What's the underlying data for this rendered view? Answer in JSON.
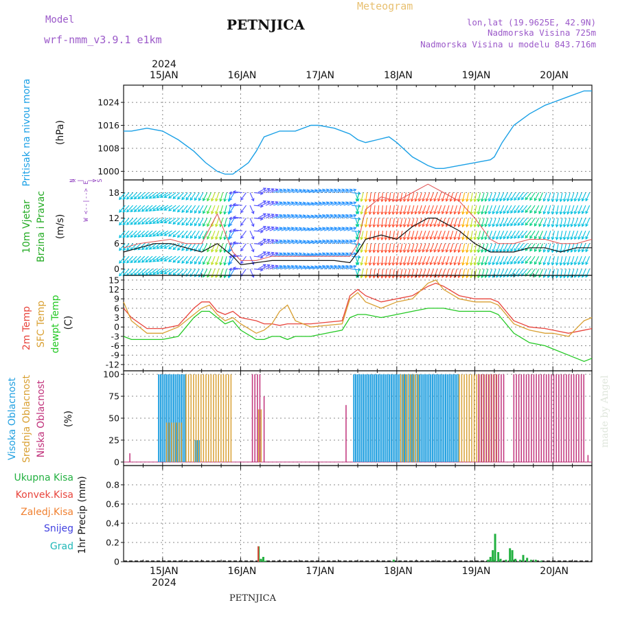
{
  "header": {
    "model_label": "Model",
    "model_name": "wrf-nmm_v3.9.1 e1km",
    "station": "PETNJICA",
    "meteogram": "Meteogram",
    "lonlat": "lon,lat (19.9625E, 42.9N)",
    "altitude": "Nadmorska Visina 725m",
    "altitude_model": "Nadmorska Visina u modelu 843.716m",
    "watermark": "made by Angel",
    "footer_station": "PETNJICA"
  },
  "colors": {
    "pressure": "#1aa0e6",
    "temp2m": "#e8443c",
    "sfc_temp": "#d9a032",
    "dewpt": "#22c822",
    "cloud_high": "#1f9fe0",
    "cloud_mid": "#d9a032",
    "cloud_low": "#c0307a",
    "precip_total": "#22b040",
    "precip_conv": "#e8443c",
    "precip_frozen": "#f08030",
    "snow": "#4040e0",
    "hail": "#20b8b8",
    "wind_label": "#22aa22",
    "wind_compass": "#9040c0"
  },
  "time_axis": {
    "year": "2024",
    "day_labels": [
      "15JAN",
      "16JAN",
      "17JAN",
      "18JAN",
      "19JAN",
      "20JAN"
    ]
  },
  "chart_data": [
    {
      "type": "line",
      "name": "pressure",
      "ylabel_lines": [
        "Pritisak na nivou mora",
        "(hPa)"
      ],
      "ylim": [
        997,
        1030
      ],
      "yticks": [
        1000,
        1008,
        1016,
        1024
      ],
      "x_days": [
        14.5,
        14.6,
        14.8,
        15.0,
        15.2,
        15.4,
        15.55,
        15.7,
        15.8,
        15.9,
        16.0,
        16.1,
        16.2,
        16.3,
        16.5,
        16.7,
        16.9,
        17.0,
        17.2,
        17.4,
        17.5,
        17.6,
        17.75,
        17.9,
        18.0,
        18.2,
        18.4,
        18.5,
        18.6,
        18.8,
        19.0,
        19.2,
        19.25,
        19.35,
        19.5,
        19.7,
        19.9,
        20.0,
        20.2,
        20.4,
        20.5
      ],
      "values": [
        1014,
        1014,
        1015,
        1014,
        1011,
        1007,
        1003,
        1000,
        999,
        999,
        1001,
        1003,
        1007,
        1012,
        1014,
        1014,
        1016,
        1016,
        1015,
        1013,
        1011,
        1010,
        1011,
        1012,
        1010,
        1005,
        1002,
        1001,
        1001,
        1002,
        1003,
        1004,
        1005,
        1010,
        1016,
        1020,
        1023,
        1024,
        1026,
        1028,
        1028
      ]
    },
    {
      "type": "line",
      "name": "wind",
      "ylabel_lines": [
        "10m Vjetar",
        "Brzina i Pravac",
        "(m/s)"
      ],
      "compass_lines": [
        "N",
        "^",
        "|",
        "W <--|--> E",
        "|",
        "v",
        "S"
      ],
      "ylim": [
        -1.5,
        21
      ],
      "yticks": [
        0,
        6,
        12,
        18
      ],
      "x_days": [
        14.5,
        14.7,
        14.9,
        15.1,
        15.3,
        15.5,
        15.7,
        15.9,
        16.0,
        16.2,
        16.4,
        16.6,
        16.8,
        17.0,
        17.2,
        17.4,
        17.5,
        17.6,
        17.8,
        18.0,
        18.2,
        18.4,
        18.5,
        18.6,
        18.8,
        19.0,
        19.2,
        19.3,
        19.5,
        19.7,
        19.9,
        20.1,
        20.3,
        20.5
      ],
      "speed": [
        4,
        5,
        6,
        6,
        5,
        4,
        6,
        3,
        1,
        1.5,
        2,
        2,
        2,
        2,
        2,
        1.5,
        4,
        7,
        8,
        7,
        10,
        12,
        12,
        11,
        9,
        6,
        4,
        4,
        4,
        5,
        5,
        4,
        5,
        5
      ],
      "gust": [
        5,
        6,
        6.5,
        7,
        6,
        6,
        13,
        4,
        2,
        2,
        3,
        3,
        3,
        3,
        3,
        3,
        6,
        14,
        17,
        16,
        18,
        20,
        19,
        18,
        16,
        12,
        7,
        6,
        6,
        7,
        7,
        6,
        6,
        7
      ],
      "arrow_direction_deg": [
        220,
        225,
        230,
        240,
        220,
        210,
        200,
        190,
        300,
        60,
        70,
        70,
        75,
        70,
        70,
        70,
        200,
        190,
        185,
        190,
        195,
        200,
        200,
        200,
        195,
        190,
        200,
        200,
        210,
        220,
        200,
        190,
        200,
        205
      ]
    },
    {
      "type": "line",
      "name": "temperature",
      "ylabel_lines": [
        "2m Temp",
        "SFC Temp",
        "dewpt Temp",
        "(C)"
      ],
      "ylim": [
        -14,
        16.5
      ],
      "yticks": [
        -12,
        -9,
        -6,
        -3,
        0,
        3,
        6,
        9,
        12,
        15
      ],
      "x_days": [
        14.5,
        14.6,
        14.8,
        15.0,
        15.2,
        15.4,
        15.5,
        15.6,
        15.7,
        15.8,
        15.9,
        16.0,
        16.2,
        16.3,
        16.4,
        16.5,
        16.6,
        16.7,
        16.9,
        17.1,
        17.3,
        17.4,
        17.5,
        17.6,
        17.8,
        18.0,
        18.2,
        18.4,
        18.5,
        18.6,
        18.8,
        19.0,
        19.2,
        19.3,
        19.5,
        19.7,
        19.9,
        20.0,
        20.2,
        20.4,
        20.5
      ],
      "series": [
        {
          "name": "2m Temp",
          "color": "#e8443c",
          "values": [
            6,
            3,
            -0.5,
            -0.5,
            0.5,
            6,
            8,
            8,
            5,
            4,
            5,
            3,
            2,
            1,
            1,
            0.5,
            1,
            1,
            1,
            1.5,
            2,
            10,
            12,
            10,
            8,
            9,
            10,
            13,
            14,
            13,
            10,
            9,
            9,
            8,
            2,
            0,
            -0.5,
            -1,
            -2,
            -1,
            -0.5
          ]
        },
        {
          "name": "SFC Temp",
          "color": "#d9a032",
          "values": [
            8,
            2,
            -2,
            -2,
            0,
            4,
            6,
            7,
            4,
            2,
            3,
            1,
            -2,
            -1,
            1,
            5,
            7,
            2,
            0,
            0.5,
            1,
            9,
            11,
            8,
            6,
            8,
            9,
            14,
            15,
            12,
            9,
            8,
            8,
            7,
            1,
            -1,
            -2,
            -2,
            -3,
            2,
            3
          ]
        },
        {
          "name": "dewpt Temp",
          "color": "#22c822",
          "values": [
            -3,
            -4,
            -4,
            -4,
            -3,
            3,
            5,
            5,
            3,
            1,
            2,
            -1,
            -4,
            -4,
            -3,
            -3,
            -4,
            -3,
            -3,
            -2,
            -1,
            3,
            4,
            4,
            3,
            4,
            5,
            6,
            6,
            6,
            5,
            5,
            5,
            4,
            -2,
            -5,
            -6,
            -7,
            -9,
            -11,
            -10
          ]
        }
      ]
    },
    {
      "type": "bar",
      "name": "clouds",
      "ylabel_lines": [
        "Visoka Oblacnost",
        "Srednja Oblacnost",
        "Niska Oblacnost",
        "(%)"
      ],
      "ylim": [
        -4,
        104
      ],
      "yticks": [
        0,
        25,
        50,
        75,
        100
      ],
      "series": [
        {
          "name": "Visoka Oblacnost",
          "color": "#1f9fe0",
          "ranges": [
            [
              14.95,
              15.3,
              100
            ],
            [
              17.45,
              18.8,
              100
            ],
            [
              15.42,
              15.48,
              25
            ]
          ]
        },
        {
          "name": "Srednja Oblacnost",
          "color": "#d9a032",
          "ranges": [
            [
              15.05,
              15.25,
              45
            ],
            [
              15.3,
              15.9,
              100
            ],
            [
              18.05,
              18.3,
              100
            ],
            [
              18.8,
              19.3,
              100
            ],
            [
              16.23,
              16.27,
              60
            ]
          ]
        },
        {
          "name": "Niska Oblacnost",
          "color": "#c0307a",
          "ranges": [
            [
              16.15,
              16.25,
              100
            ],
            [
              16.3,
              16.32,
              75
            ],
            [
              19.05,
              19.4,
              100
            ],
            [
              19.5,
              20.4,
              100
            ],
            [
              17.35,
              17.37,
              65
            ],
            [
              14.58,
              14.6,
              10
            ],
            [
              20.45,
              20.47,
              8
            ]
          ]
        }
      ]
    },
    {
      "type": "bar",
      "name": "precip",
      "ylabel_lines": [
        "1hr Precip (mm)"
      ],
      "legend": [
        "Ukupna Kisa",
        "Konvek.Kisa",
        "Zaledj.Kisa",
        "Snijeg",
        "Grad"
      ],
      "ylim": [
        0,
        1.0
      ],
      "yticks": [
        0,
        0.2,
        0.4,
        0.6,
        0.8
      ],
      "x_days": [
        16.23,
        16.26,
        16.29,
        16.32,
        17.96,
        19.17,
        19.2,
        19.23,
        19.26,
        19.3,
        19.33,
        19.4,
        19.45,
        19.48,
        19.52,
        19.58,
        19.62,
        19.67,
        19.72,
        19.78,
        19.85
      ],
      "values": [
        0.16,
        0.03,
        0.05,
        0.01,
        0.02,
        0.02,
        0.05,
        0.12,
        0.29,
        0.1,
        0.03,
        0.02,
        0.14,
        0.12,
        0.03,
        0.02,
        0.07,
        0.04,
        0.02,
        0.02,
        0.01
      ],
      "conv_x_days": [
        16.23
      ],
      "conv_values": [
        0.16
      ]
    }
  ]
}
